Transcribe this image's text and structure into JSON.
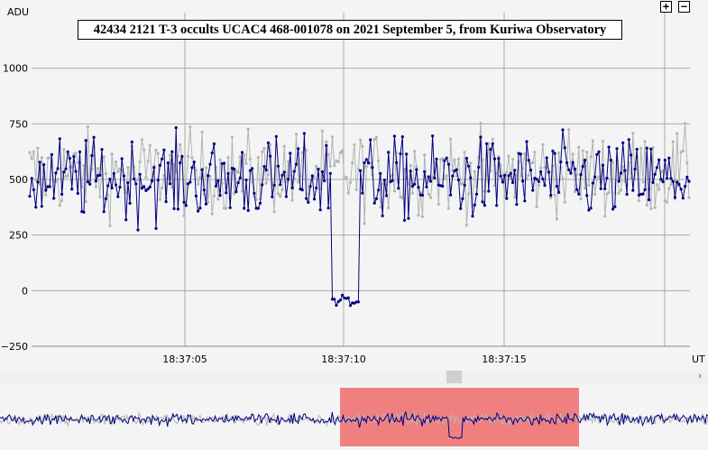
{
  "chart_data": {
    "type": "line",
    "title": "42434 2121 T-3 occults UCAC4 468-001078 on 2021 September 5, from Kuriwa Observatory",
    "ylabel": "ADU",
    "xunit": "UT",
    "ylim": [
      -250,
      1250
    ],
    "y_ticks": [
      1000,
      750,
      500,
      250,
      0,
      -250
    ],
    "x_ticks": [
      "18:37:05",
      "18:37:10",
      "18:37:15"
    ],
    "grid": true,
    "series": [
      {
        "role": "target",
        "color": "#000080",
        "baseline": 500,
        "noise": 130,
        "occultation_level": -40
      },
      {
        "role": "comparison",
        "color": "#b4b4b4",
        "baseline": 530,
        "noise": 130
      }
    ],
    "occultation": {
      "start": "18:37:09.8",
      "end": "18:37:10.6"
    }
  },
  "controls": {
    "zoom_in": "+",
    "zoom_out": "−",
    "scroll_right": "›"
  },
  "colors": {
    "target": "#000080",
    "comparison": "#b4b4b4",
    "selection": "#f08080",
    "grid": "#aaaaaa",
    "background": "#f4f4f4"
  }
}
